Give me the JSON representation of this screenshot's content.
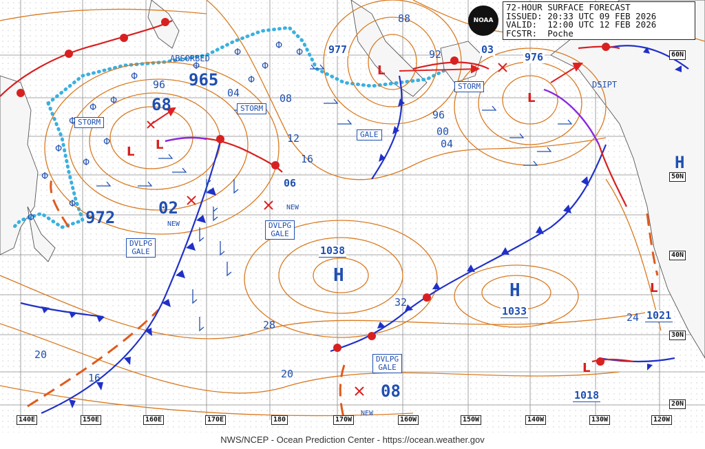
{
  "header": {
    "title": "72-HOUR SURFACE FORECAST",
    "issued_label": "ISSUED:",
    "issued": "20:33 UTC 09 FEB 2026",
    "valid_label": "VALID:",
    "valid": "12:00 UTC 12 FEB 2026",
    "forecaster_label": "FCSTR:",
    "forecaster": "Poche"
  },
  "logo_text": "NOAA",
  "footer": "NWS/NCEP - Ocean Prediction Center - https://ocean.weather.gov",
  "longitude_ticks": [
    "140E",
    "150E",
    "160E",
    "170E",
    "180",
    "170W",
    "160W",
    "150W",
    "140W",
    "130W",
    "120W"
  ],
  "latitude_ticks": [
    "60N",
    "50N",
    "40N",
    "30N",
    "20N"
  ],
  "pressure_centers": [
    {
      "value": "965",
      "type": "L"
    },
    {
      "value": "972",
      "type": "L"
    },
    {
      "value": "977",
      "type": "L"
    },
    {
      "value": "976",
      "type": "L"
    },
    {
      "value": "03",
      "type": "L"
    },
    {
      "value": "68",
      "type": "L"
    },
    {
      "value": "02",
      "type": "L"
    },
    {
      "value": "06",
      "type": "L"
    },
    {
      "value": "08",
      "type": "L"
    },
    {
      "value": "1038",
      "type": "H"
    },
    {
      "value": "1033",
      "type": "H"
    },
    {
      "value": "1021",
      "type": "L"
    },
    {
      "value": "1018",
      "type": "L"
    }
  ],
  "isobar_labels": [
    "96",
    "04",
    "08",
    "12",
    "16",
    "88",
    "92",
    "96",
    "00",
    "04",
    "32",
    "28",
    "24",
    "20",
    "20",
    "16"
  ],
  "warnings": [
    "STORM",
    "STORM",
    "STORM",
    "GALE",
    "DVLPG\nGALE",
    "DVLPG\nGALE",
    "DVLPG\nGALE"
  ],
  "annotations": [
    "ABSORBED",
    "DSIPT",
    "NEW",
    "NEW",
    "NEW"
  ],
  "colors": {
    "isobar": "#d97a1f",
    "cold_front": "#2030c8",
    "warm_front": "#d82020",
    "ice": "#3ab0e0",
    "text": "#1f4fb0",
    "grid": "#8a8a8a",
    "occluded": "#8a2be2"
  }
}
